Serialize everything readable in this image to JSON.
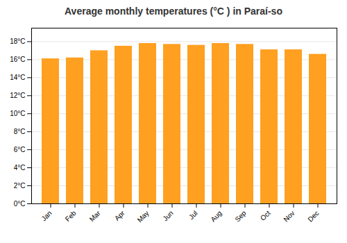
{
  "chart_data": {
    "type": "bar",
    "title": "Average monthly temperatures (°C ) in Paraí-so",
    "categories": [
      "Jan",
      "Feb",
      "Mar",
      "Apr",
      "May",
      "Jun",
      "Jul",
      "Aug",
      "Sep",
      "Oct",
      "Nov",
      "Dec"
    ],
    "values": [
      16.1,
      16.2,
      17.0,
      17.5,
      17.8,
      17.7,
      17.6,
      17.8,
      17.7,
      17.1,
      17.1,
      16.6
    ],
    "color": "#FFA020",
    "ylim": [
      0,
      19.5
    ],
    "yticks": [
      {
        "value": 0,
        "label": "0°C"
      },
      {
        "value": 2,
        "label": "2°C"
      },
      {
        "value": 4,
        "label": "4°C"
      },
      {
        "value": 6,
        "label": "6°C"
      },
      {
        "value": 8,
        "label": "8°C"
      },
      {
        "value": 10,
        "label": "10°C"
      },
      {
        "value": 12,
        "label": "12°C"
      },
      {
        "value": 14,
        "label": "14°C"
      },
      {
        "value": 16,
        "label": "16°C"
      },
      {
        "value": 18,
        "label": "18°C"
      }
    ],
    "grid": true
  }
}
